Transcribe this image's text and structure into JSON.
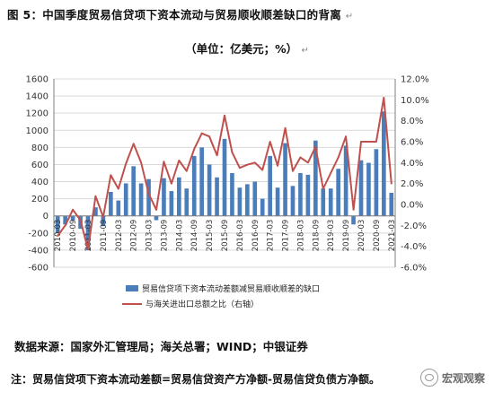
{
  "figure": {
    "title": "图 5：中国季度贸易信贷项下资本流动与贸易顺收顺差缺口的背离",
    "title_mark": "↵",
    "unit": "（单位：亿美元；%）",
    "unit_mark": "↵",
    "source": "数据来源：国家外汇管理局；海关总署；WIND；中银证券",
    "note": "注：贸易信贷项下资本流动差额=贸易信贷资产方净额-贸易信贷负债方净额。",
    "watermark": "宏观观察"
  },
  "colors": {
    "bar": "#4a7ebb",
    "line": "#c0504d",
    "grid": "#d9d9d9",
    "axis": "#7f7f7f"
  },
  "chart_data": {
    "type": "bar",
    "x": [
      "2010-03",
      "2010-06",
      "2010-09",
      "2010-12",
      "2011-03",
      "2011-06",
      "2011-09",
      "2011-12",
      "2012-03",
      "2012-06",
      "2012-09",
      "2012-12",
      "2013-03",
      "2013-06",
      "2013-09",
      "2013-12",
      "2014-03",
      "2014-06",
      "2014-09",
      "2014-12",
      "2015-03",
      "2015-06",
      "2015-09",
      "2015-12",
      "2016-03",
      "2016-06",
      "2016-09",
      "2016-12",
      "2017-03",
      "2017-06",
      "2017-09",
      "2017-12",
      "2018-03",
      "2018-06",
      "2018-09",
      "2018-12",
      "2019-03",
      "2019-06",
      "2019-09",
      "2019-12",
      "2020-03",
      "2020-06",
      "2020-09",
      "2020-12",
      "2021-03"
    ],
    "x_tick_labels": [
      "2010-03",
      "2010-09",
      "2011-03",
      "2011-09",
      "2012-03",
      "2012-09",
      "2013-03",
      "2013-09",
      "2014-03",
      "2014-09",
      "2015-03",
      "2015-09",
      "2016-03",
      "2016-09",
      "2017-03",
      "2017-09",
      "2018-03",
      "2018-09",
      "2019-03",
      "2019-09",
      "2020-03",
      "2020-09",
      "2021-03"
    ],
    "y_left_ticks": [
      "1600",
      "1400",
      "1200",
      "1000",
      "800",
      "600",
      "400",
      "200",
      "0",
      "-200",
      "-400",
      "-600"
    ],
    "y_right_ticks": [
      "12.0%",
      "10.0%",
      "8.0%",
      "6.0%",
      "4.0%",
      "2.0%",
      "0.0%",
      "-2.0%",
      "-4.0%",
      "-6.0%"
    ],
    "ylim_left": [
      -600,
      1600
    ],
    "ylim_right": [
      -6,
      12
    ],
    "grid": true,
    "legend_position": "bottom",
    "series": [
      {
        "name": "贸易信贷项下资本流动差额减贸易顺收顺差的缺口",
        "type": "bar",
        "axis": "left",
        "values": [
          -200,
          -100,
          -50,
          -150,
          -400,
          100,
          -120,
          280,
          180,
          380,
          580,
          380,
          430,
          -50,
          440,
          290,
          450,
          320,
          700,
          800,
          600,
          450,
          900,
          500,
          330,
          370,
          400,
          200,
          700,
          330,
          850,
          350,
          500,
          480,
          880,
          320,
          320,
          550,
          820,
          -100,
          650,
          620,
          780,
          1220,
          270
        ]
      },
      {
        "name": "与海关进出口总额之比（右轴）",
        "type": "line",
        "axis": "right",
        "values": [
          -3.0,
          -2.0,
          -0.5,
          -1.5,
          -4.3,
          0.8,
          -1.2,
          2.8,
          1.5,
          3.9,
          5.8,
          4.0,
          1.0,
          -0.5,
          4.1,
          2.0,
          4.2,
          3.2,
          5.3,
          6.8,
          6.5,
          4.7,
          8.5,
          5.0,
          3.5,
          3.8,
          4.0,
          3.3,
          6.0,
          3.7,
          7.3,
          3.2,
          4.5,
          4.0,
          5.5,
          1.5,
          3.0,
          4.5,
          6.5,
          -0.5,
          6.0,
          6.0,
          6.0,
          10.2,
          2.0
        ]
      }
    ]
  }
}
